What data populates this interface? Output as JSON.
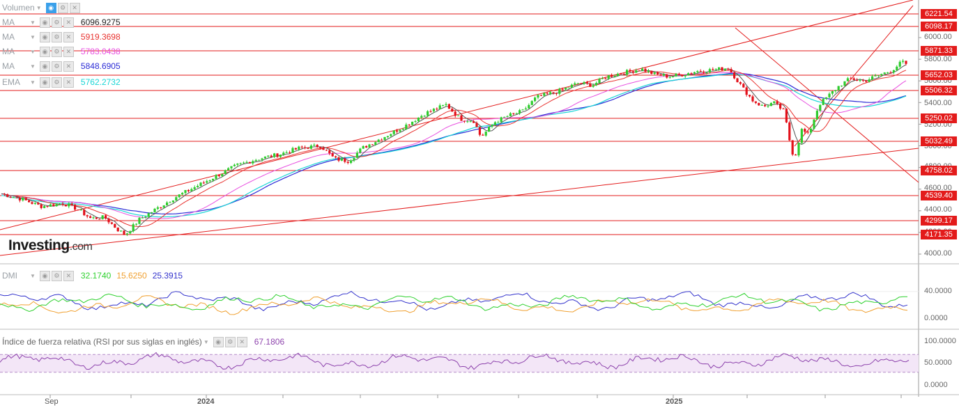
{
  "legend": {
    "volume": {
      "label": "Volumen"
    },
    "ma": [
      {
        "label": "MA",
        "value": "6096.9275",
        "color": "#222222"
      },
      {
        "label": "MA",
        "value": "5919.3698",
        "color": "#e8312e"
      },
      {
        "label": "MA",
        "value": "5783.0438",
        "color": "#e84fe0"
      },
      {
        "label": "MA",
        "value": "5848.6905",
        "color": "#2b2bd6"
      }
    ],
    "ema": {
      "label": "EMA",
      "value": "5762.2732",
      "color": "#19d6d6"
    }
  },
  "logo": {
    "brand": "Investing",
    "suffix": ".com"
  },
  "dmi": {
    "label": "DMI",
    "values": [
      "32.1740",
      "15.6250",
      "25.3915"
    ],
    "colors": [
      "#2fd12f",
      "#f0a030",
      "#3333cc"
    ]
  },
  "rsi": {
    "label": "Índice de fuerza relativa (RSI por sus siglas en inglés)",
    "value": "67.1806",
    "color": "#8e44ad"
  },
  "price_axis": [
    "6000.00",
    "5800.00",
    "5600.00",
    "5400.00",
    "5200.00",
    "5000.00",
    "4800.00",
    "4600.00",
    "4400.00",
    "4200.00",
    "4000.00"
  ],
  "price_tags": [
    "6221.54",
    "6098.17",
    "5871.33",
    "5652.03",
    "5506.32",
    "5250.02",
    "5032.49",
    "4758.02",
    "4539.40",
    "4299.17",
    "4171.35"
  ],
  "dmi_axis": [
    "40.0000",
    "0.0000"
  ],
  "rsi_axis": [
    "100.0000",
    "50.0000",
    "0.0000"
  ],
  "time_axis": [
    "Sep",
    "2024",
    "2025"
  ],
  "chart_data": {
    "type": "candlestick",
    "y_range": [
      4000,
      6300
    ],
    "x_labels": [
      "Sep",
      "2024",
      "2025"
    ],
    "horizontal_levels": [
      6221.54,
      6098.17,
      5871.33,
      5652.03,
      5506.32,
      5250.02,
      5032.49,
      4758.02,
      4539.4,
      4299.17,
      4171.35
    ],
    "close_path": [
      [
        0,
        4560
      ],
      [
        30,
        4510
      ],
      [
        60,
        4440
      ],
      [
        90,
        4470
      ],
      [
        110,
        4420
      ],
      [
        130,
        4330
      ],
      [
        150,
        4340
      ],
      [
        170,
        4220
      ],
      [
        180,
        4180
      ],
      [
        200,
        4320
      ],
      [
        220,
        4400
      ],
      [
        250,
        4520
      ],
      [
        280,
        4620
      ],
      [
        310,
        4720
      ],
      [
        340,
        4820
      ],
      [
        370,
        4880
      ],
      [
        400,
        4920
      ],
      [
        430,
        4980
      ],
      [
        460,
        5000
      ],
      [
        480,
        4880
      ],
      [
        500,
        4860
      ],
      [
        520,
        4980
      ],
      [
        550,
        5080
      ],
      [
        580,
        5180
      ],
      [
        610,
        5300
      ],
      [
        640,
        5380
      ],
      [
        660,
        5250
      ],
      [
        680,
        5230
      ],
      [
        690,
        5080
      ],
      [
        710,
        5220
      ],
      [
        730,
        5280
      ],
      [
        750,
        5320
      ],
      [
        770,
        5450
      ],
      [
        800,
        5500
      ],
      [
        830,
        5580
      ],
      [
        850,
        5560
      ],
      [
        870,
        5640
      ],
      [
        890,
        5670
      ],
      [
        920,
        5710
      ],
      [
        940,
        5660
      ],
      [
        960,
        5640
      ],
      [
        980,
        5660
      ],
      [
        1000,
        5690
      ],
      [
        1020,
        5700
      ],
      [
        1045,
        5720
      ],
      [
        1065,
        5540
      ],
      [
        1080,
        5420
      ],
      [
        1095,
        5360
      ],
      [
        1110,
        5400
      ],
      [
        1125,
        5320
      ],
      [
        1135,
        4980
      ],
      [
        1140,
        4880
      ],
      [
        1150,
        5150
      ],
      [
        1160,
        5100
      ],
      [
        1175,
        5380
      ],
      [
        1190,
        5470
      ],
      [
        1205,
        5560
      ],
      [
        1220,
        5620
      ],
      [
        1240,
        5600
      ],
      [
        1260,
        5650
      ],
      [
        1280,
        5700
      ],
      [
        1295,
        5780
      ],
      [
        1300,
        5740
      ]
    ],
    "dmi_series": [
      {
        "name": "+DI",
        "value": 32.174
      },
      {
        "name": "-DI",
        "value": 15.625
      },
      {
        "name": "ADX",
        "value": 25.3915
      }
    ],
    "rsi": {
      "value": 67.1806,
      "overbought": 70,
      "oversold": 30
    }
  }
}
